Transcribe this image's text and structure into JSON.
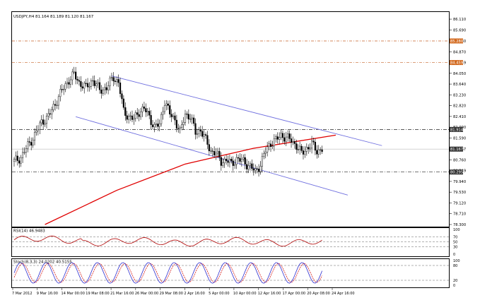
{
  "header": {
    "symbol_line": "USDJPY,H4  81.164 81.189 81.120 81.167"
  },
  "price_axis": {
    "ticks": [
      "86.110",
      "85.690",
      "85.280",
      "84.870",
      "84.459",
      "84.050",
      "83.640",
      "83.230",
      "82.820",
      "82.410",
      "82.000",
      "81.590",
      "81.167",
      "80.760",
      "80.349",
      "79.940",
      "79.530",
      "79.120",
      "78.710",
      "78.300"
    ],
    "highlight_labels": [
      {
        "text": "85.280",
        "color": "#d2691e"
      },
      {
        "text": "84.459",
        "color": "#d2691e"
      },
      {
        "text": "81.914",
        "color": "#333333"
      },
      {
        "text": "81.167",
        "color": "#333333"
      },
      {
        "text": "80.295",
        "color": "#333333"
      }
    ]
  },
  "rsi_panel": {
    "label": "RSI(14) 46.9483",
    "ticks": [
      "100",
      "70",
      "50",
      "30",
      "0"
    ]
  },
  "stoch_panel": {
    "label": "Stoch(8,3,3) 24.0202 40.5155",
    "ticks": [
      "100",
      "80",
      "20",
      "0"
    ]
  },
  "time_axis": {
    "labels": [
      "7 Mar 2012",
      "9 Mar 16:00",
      "14 Mar 00:00",
      "19 Mar 08:00",
      "21 Mar 16:00",
      "26 Mar 00:00",
      "29 Mar 08:00",
      "2 Apr 16:00",
      "5 Apr 00:00",
      "10 Apr 00:00",
      "12 Apr 16:00",
      "17 Apr 00:00",
      "20 Apr 08:00",
      "24 Apr 16:00"
    ]
  },
  "chart_data": {
    "type": "candlestick",
    "symbol": "USDJPY",
    "timeframe": "H4",
    "ohlc_last": {
      "open": 81.164,
      "high": 81.189,
      "low": 81.12,
      "close": 81.167
    },
    "ylim": [
      78.3,
      86.3
    ],
    "horizontal_levels": [
      85.28,
      84.459,
      81.914,
      81.167,
      80.295
    ],
    "close_path": [
      [
        0,
        80.7
      ],
      [
        4,
        80.85
      ],
      [
        8,
        81.3
      ],
      [
        12,
        81.7
      ],
      [
        16,
        82.2
      ],
      [
        20,
        82.4
      ],
      [
        24,
        82.9
      ],
      [
        28,
        83.4
      ],
      [
        32,
        83.8
      ],
      [
        35,
        84.0
      ],
      [
        38,
        83.7
      ],
      [
        42,
        83.5
      ],
      [
        46,
        83.8
      ],
      [
        50,
        83.4
      ],
      [
        54,
        83.5
      ],
      [
        58,
        83.9
      ],
      [
        61,
        83.7
      ],
      [
        64,
        82.6
      ],
      [
        67,
        82.4
      ],
      [
        70,
        82.3
      ],
      [
        73,
        82.6
      ],
      [
        76,
        82.7
      ],
      [
        79,
        82.4
      ],
      [
        82,
        82.0
      ],
      [
        85,
        82.1
      ],
      [
        88,
        83.0
      ],
      [
        91,
        82.5
      ],
      [
        94,
        82.3
      ],
      [
        97,
        81.8
      ],
      [
        100,
        82.5
      ],
      [
        103,
        82.4
      ],
      [
        106,
        81.8
      ],
      [
        109,
        81.9
      ],
      [
        112,
        81.5
      ],
      [
        115,
        81.1
      ],
      [
        118,
        81.0
      ],
      [
        121,
        80.7
      ],
      [
        124,
        80.75
      ],
      [
        127,
        80.6
      ],
      [
        130,
        80.8
      ],
      [
        134,
        80.7
      ],
      [
        138,
        80.5
      ],
      [
        141,
        80.3
      ],
      [
        144,
        80.6
      ],
      [
        147,
        81.1
      ],
      [
        150,
        81.4
      ],
      [
        153,
        81.5
      ],
      [
        156,
        81.7
      ],
      [
        159,
        81.6
      ],
      [
        162,
        81.5
      ],
      [
        165,
        81.3
      ],
      [
        168,
        81.0
      ],
      [
        171,
        81.2
      ],
      [
        174,
        81.35
      ],
      [
        177,
        81.1
      ],
      [
        180,
        81.167
      ]
    ],
    "channel_upper": [
      [
        57,
        83.95
      ],
      [
        215,
        81.3
      ]
    ],
    "channel_lower": [
      [
        36,
        82.4
      ],
      [
        195,
        79.42
      ]
    ],
    "red_ma": [
      [
        18,
        78.3
      ],
      [
        60,
        79.6
      ],
      [
        100,
        80.6
      ],
      [
        140,
        81.2
      ],
      [
        188,
        81.7
      ]
    ],
    "rsi": {
      "period": 14,
      "value": 46.9483,
      "levels": [
        70,
        50,
        30
      ]
    },
    "stochastic": {
      "params": "8,3,3",
      "main": 24.0202,
      "signal": 40.5155,
      "levels": [
        80,
        20
      ]
    }
  }
}
